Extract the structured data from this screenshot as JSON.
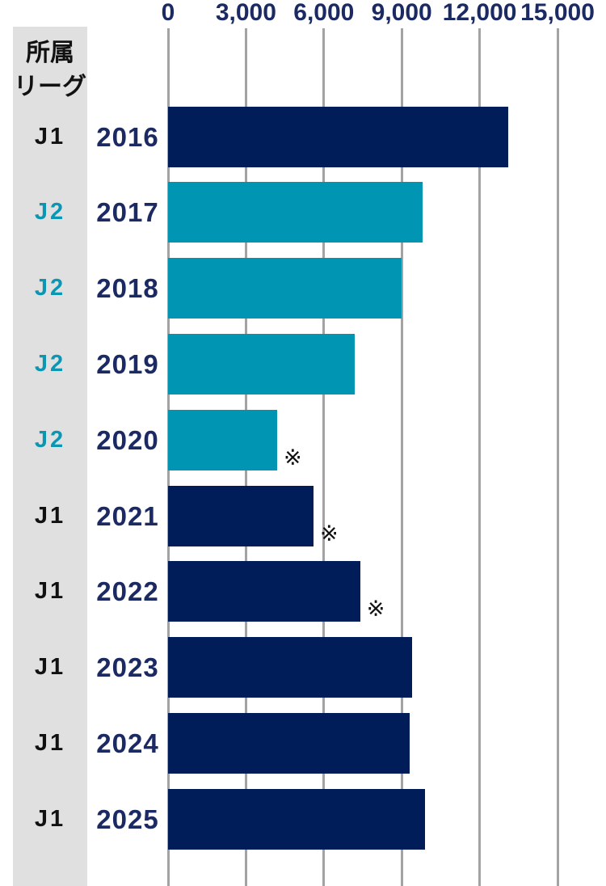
{
  "chart_data": {
    "type": "bar",
    "orientation": "horizontal",
    "league_header": [
      "所属",
      "リーグ"
    ],
    "x_tick_values": [
      0,
      3000,
      6000,
      9000,
      12000,
      15000
    ],
    "x_tick_labels": [
      "0",
      "3,000",
      "6,000",
      "9,000",
      "12,000",
      "15,000"
    ],
    "xlim": [
      0,
      15000
    ],
    "grid": true,
    "legend_position": "none",
    "categories": [
      "2016",
      "2017",
      "2018",
      "2019",
      "2020",
      "2021",
      "2022",
      "2023",
      "2024",
      "2025"
    ],
    "rows": [
      {
        "year": "2016",
        "league": "J1",
        "value": 13100,
        "note": ""
      },
      {
        "year": "2017",
        "league": "J2",
        "value": 9800,
        "note": ""
      },
      {
        "year": "2018",
        "league": "J2",
        "value": 9000,
        "note": ""
      },
      {
        "year": "2019",
        "league": "J2",
        "value": 7200,
        "note": ""
      },
      {
        "year": "2020",
        "league": "J2",
        "value": 4200,
        "note": "※"
      },
      {
        "year": "2021",
        "league": "J1",
        "value": 5600,
        "note": "※"
      },
      {
        "year": "2022",
        "league": "J1",
        "value": 7400,
        "note": "※"
      },
      {
        "year": "2023",
        "league": "J1",
        "value": 9400,
        "note": ""
      },
      {
        "year": "2024",
        "league": "J1",
        "value": 9300,
        "note": ""
      },
      {
        "year": "2025",
        "league": "J1",
        "value": 9900,
        "note": ""
      }
    ],
    "colors": {
      "j1_bar": "#001c59",
      "j2_bar": "#0095b2",
      "j1_label_text": "#111111",
      "j2_label_text": "#0b96b4",
      "year_text": "#1b2a63",
      "axis_text": "#1b2a63",
      "gridline": "#a3a3a3",
      "band_background": "#e0e0e0",
      "note_text": "#111111"
    }
  }
}
